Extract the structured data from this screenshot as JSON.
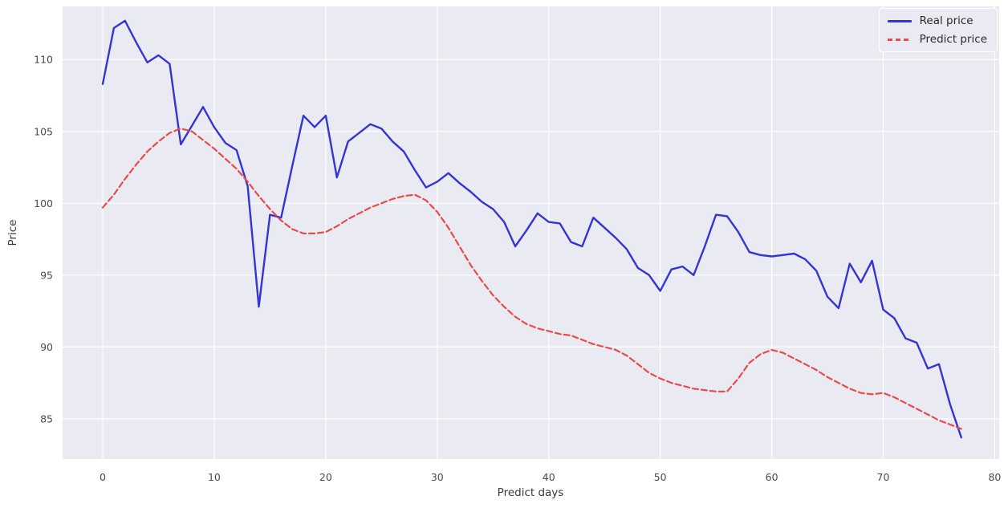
{
  "figure": {
    "background": "#ffffff",
    "plot_background": "#eaeaf2",
    "grid_color": "#ffffff",
    "tick_color": "#4a4a4a"
  },
  "chart_data": {
    "type": "line",
    "title": "",
    "xlabel": "Predict days",
    "ylabel": "Price",
    "grid": true,
    "legend_position": "upper right",
    "xlim": [
      -3.6,
      80.4
    ],
    "ylim": [
      82.2,
      113.7
    ],
    "x_ticks": [
      0,
      10,
      20,
      30,
      40,
      50,
      60,
      70,
      80
    ],
    "y_ticks": [
      85,
      90,
      95,
      100,
      105,
      110
    ],
    "x": [
      0,
      1,
      2,
      3,
      4,
      5,
      6,
      7,
      8,
      9,
      10,
      11,
      12,
      13,
      14,
      15,
      16,
      17,
      18,
      19,
      20,
      21,
      22,
      23,
      24,
      25,
      26,
      27,
      28,
      29,
      30,
      31,
      32,
      33,
      34,
      35,
      36,
      37,
      38,
      39,
      40,
      41,
      42,
      43,
      44,
      45,
      46,
      47,
      48,
      49,
      50,
      51,
      52,
      53,
      54,
      55,
      56,
      57,
      58,
      59,
      60,
      61,
      62,
      63,
      64,
      65,
      66,
      67,
      68,
      69,
      70,
      71,
      72,
      73,
      74,
      75,
      76,
      77
    ],
    "series": [
      {
        "name": "Real price",
        "color": "#3434d3",
        "style": "solid",
        "line_width": 2.4,
        "values": [
          108.3,
          112.2,
          112.7,
          111.2,
          109.8,
          110.3,
          109.7,
          104.1,
          105.4,
          106.7,
          105.3,
          104.2,
          103.7,
          101.2,
          92.8,
          99.2,
          99.0,
          102.6,
          106.1,
          105.3,
          106.1,
          101.8,
          104.3,
          104.9,
          105.5,
          105.2,
          104.3,
          103.6,
          102.3,
          101.1,
          101.5,
          102.1,
          101.4,
          100.8,
          100.1,
          99.6,
          98.7,
          97.0,
          98.1,
          99.3,
          98.7,
          98.6,
          97.3,
          97.0,
          99.0,
          98.3,
          97.6,
          96.8,
          95.5,
          95.0,
          93.9,
          95.4,
          95.6,
          95.0,
          97.0,
          99.2,
          99.1,
          98.0,
          96.6,
          96.4,
          96.3,
          96.4,
          96.5,
          96.1,
          95.3,
          93.5,
          92.7,
          95.8,
          94.5,
          96.0,
          92.6,
          92.0,
          90.6,
          90.3,
          88.5,
          88.8,
          86.0,
          83.7
        ]
      },
      {
        "name": "Predict price",
        "color": "#e74c4c",
        "style": "dashed",
        "line_width": 2.2,
        "values": [
          99.7,
          100.6,
          101.7,
          102.7,
          103.6,
          104.3,
          104.9,
          105.2,
          105.0,
          104.4,
          103.8,
          103.1,
          102.4,
          101.5,
          100.5,
          99.6,
          98.8,
          98.2,
          97.9,
          97.9,
          98.0,
          98.4,
          98.9,
          99.3,
          99.7,
          100.0,
          100.3,
          100.5,
          100.6,
          100.2,
          99.4,
          98.3,
          97.0,
          95.7,
          94.6,
          93.6,
          92.8,
          92.1,
          91.6,
          91.3,
          91.1,
          90.9,
          90.8,
          90.5,
          90.2,
          90.0,
          89.8,
          89.4,
          88.8,
          88.2,
          87.8,
          87.5,
          87.3,
          87.1,
          87.0,
          86.9,
          86.9,
          87.8,
          88.9,
          89.5,
          89.8,
          89.6,
          89.2,
          88.8,
          88.4,
          87.9,
          87.5,
          87.1,
          86.8,
          86.7,
          86.8,
          86.5,
          86.1,
          85.7,
          85.3,
          84.9,
          84.6,
          84.3
        ]
      }
    ]
  },
  "legend": {
    "items": [
      {
        "label": "Real price"
      },
      {
        "label": "Predict price"
      }
    ]
  }
}
